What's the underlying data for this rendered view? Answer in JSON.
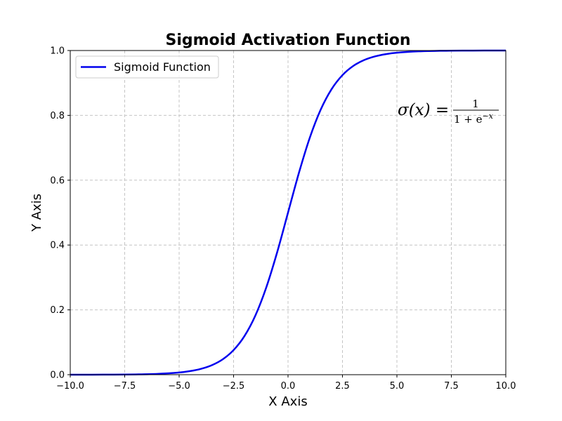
{
  "chart_data": {
    "type": "line",
    "title": "Sigmoid Activation Function",
    "xlabel": "X Axis",
    "ylabel": "Y Axis",
    "xlim": [
      -10,
      10
    ],
    "ylim": [
      0,
      1
    ],
    "x_ticks": [
      -10,
      -7.5,
      -5,
      -2.5,
      0,
      2.5,
      5,
      7.5,
      10
    ],
    "x_tick_labels": [
      "−10.0",
      "−7.5",
      "−5.0",
      "−2.5",
      "0.0",
      "2.5",
      "5.0",
      "7.5",
      "10.0"
    ],
    "y_ticks": [
      0,
      0.2,
      0.4,
      0.6,
      0.8,
      1.0
    ],
    "y_tick_labels": [
      "0.0",
      "0.2",
      "0.4",
      "0.6",
      "0.8",
      "1.0"
    ],
    "grid": true,
    "legend_position": "top-left",
    "series": [
      {
        "name": "Sigmoid Function",
        "color": "#0000ee",
        "x": [
          -10,
          -9,
          -8,
          -7,
          -6,
          -5,
          -4.5,
          -4,
          -3.5,
          -3,
          -2.5,
          -2,
          -1.5,
          -1,
          -0.5,
          0,
          0.5,
          1,
          1.5,
          2,
          2.5,
          3,
          3.5,
          4,
          4.5,
          5,
          6,
          7,
          8,
          9,
          10
        ],
        "y": [
          0.0,
          0.0001,
          0.0003,
          0.0009,
          0.0025,
          0.0067,
          0.011,
          0.018,
          0.0293,
          0.0474,
          0.0759,
          0.1192,
          0.1824,
          0.2689,
          0.3775,
          0.5,
          0.6225,
          0.7311,
          0.8176,
          0.8808,
          0.9241,
          0.9526,
          0.9707,
          0.982,
          0.989,
          0.9933,
          0.9975,
          0.9991,
          0.9997,
          0.9999,
          1.0
        ]
      }
    ],
    "annotation": {
      "lhs": "σ(x) =",
      "numerator": "1",
      "denominator_base": "1 + e",
      "denominator_exponent": "−x"
    }
  }
}
